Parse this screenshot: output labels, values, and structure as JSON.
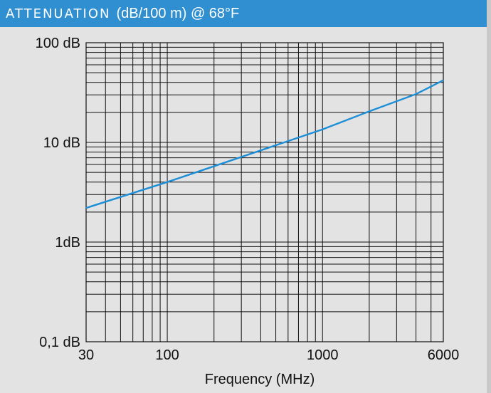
{
  "header": {
    "title": "ATTENUATION",
    "subtitle": "(dB/100 m) @ 68°F"
  },
  "colors": {
    "header_bg": "#2f8fd0",
    "line": "#1e8fd6",
    "background": "#e3e3e3"
  },
  "chart_data": {
    "type": "line",
    "title": "ATTENUATION (dB/100 m) @ 68°F",
    "xlabel": "Frequency (MHz)",
    "ylabel": "",
    "x_scale": "log",
    "y_scale": "log",
    "xlim": [
      30,
      6000
    ],
    "ylim": [
      0.1,
      100
    ],
    "grid": true,
    "x_ticks": [
      {
        "value": 30,
        "label": "30"
      },
      {
        "value": 100,
        "label": "100"
      },
      {
        "value": 1000,
        "label": "1000"
      },
      {
        "value": 6000,
        "label": "6000"
      }
    ],
    "y_ticks": [
      {
        "value": 100,
        "label": "100 dB"
      },
      {
        "value": 10,
        "label": "10 dB"
      },
      {
        "value": 1,
        "label": "1dB"
      },
      {
        "value": 0.1,
        "label": "0,1 dB"
      }
    ],
    "series": [
      {
        "x": [
          30,
          100,
          1000,
          2000,
          4000,
          6000
        ],
        "y": [
          2.2,
          4.0,
          13.5,
          20.5,
          30.5,
          42.0
        ]
      }
    ]
  }
}
